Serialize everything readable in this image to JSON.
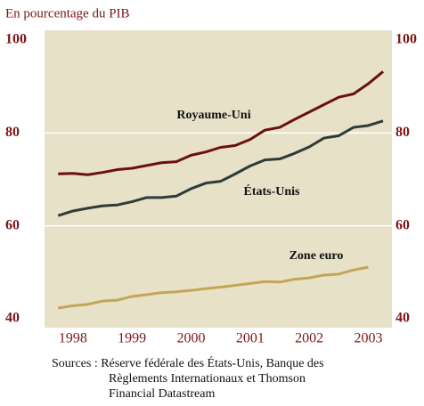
{
  "chart_data": {
    "type": "line",
    "subtitle": "En pourcentage du PIB",
    "x": [
      1998.25,
      1998.5,
      1998.75,
      1999.0,
      1999.25,
      1999.5,
      1999.75,
      2000.0,
      2000.25,
      2000.5,
      2000.75,
      2001.0,
      2001.25,
      2001.5,
      2001.75,
      2002.0,
      2002.25,
      2002.5,
      2002.75,
      2003.0,
      2003.25,
      2003.5,
      2003.75
    ],
    "series": [
      {
        "name": "Royaume-Uni",
        "color": "#6b1010",
        "values": [
          71.2,
          71.3,
          71.0,
          71.5,
          72.1,
          72.4,
          73.0,
          73.6,
          73.8,
          75.2,
          75.9,
          76.9,
          77.3,
          78.6,
          80.6,
          81.2,
          82.9,
          84.5,
          86.1,
          87.7,
          88.4,
          90.6,
          93.2
        ]
      },
      {
        "name": "États-Unis",
        "color": "#2e3b38",
        "values": [
          62.2,
          63.2,
          63.8,
          64.3,
          64.5,
          65.2,
          66.1,
          66.1,
          66.4,
          68.0,
          69.2,
          69.6,
          71.2,
          72.9,
          74.2,
          74.4,
          75.6,
          77.0,
          78.9,
          79.4,
          81.2,
          81.6,
          82.6
        ]
      },
      {
        "name": "Zone euro",
        "color": "#c4a558",
        "values": [
          42.3,
          42.8,
          43.1,
          43.8,
          44.0,
          44.8,
          45.2,
          45.6,
          45.8,
          46.1,
          46.5,
          46.8,
          47.2,
          47.6,
          48.0,
          47.9,
          48.5,
          48.8,
          49.4,
          49.6,
          50.5,
          51.1,
          null
        ]
      }
    ],
    "xlim": [
      1998.02,
      2003.9
    ],
    "xticks": [
      {
        "value": 1998.5,
        "label": "1998"
      },
      {
        "value": 1999.5,
        "label": "1999"
      },
      {
        "value": 2000.5,
        "label": "2000"
      },
      {
        "value": 2001.5,
        "label": "2001"
      },
      {
        "value": 2002.5,
        "label": "2002"
      },
      {
        "value": 2003.5,
        "label": "2003"
      }
    ],
    "ylim": [
      40,
      100
    ],
    "yticks": [
      40,
      60,
      80,
      100
    ],
    "grid": true,
    "source": [
      "Sources : Réserve fédérale des États-Unis, Banque des",
      "Règlements Internationaux et Thomson",
      "Financial Datastream"
    ]
  }
}
